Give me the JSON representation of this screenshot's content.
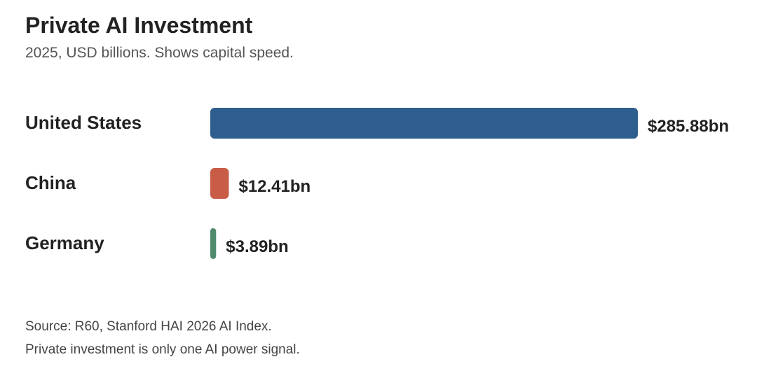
{
  "chart_data": {
    "type": "bar",
    "orientation": "horizontal",
    "title": "Private AI Investment",
    "subtitle": "2025, USD billions. Shows capital speed.",
    "categories": [
      "United States",
      "China",
      "Germany"
    ],
    "values": [
      285.88,
      12.41,
      3.89
    ],
    "value_labels": [
      "$285.88bn",
      "$12.41bn",
      "$3.89bn"
    ],
    "colors": [
      "#2e5e8e",
      "#c95c47",
      "#4f8a6b"
    ],
    "xlim": [
      0,
      285.88
    ],
    "grid": false,
    "legend": "none"
  },
  "footer": {
    "source": "Source: R60, Stanford HAI 2026 AI Index.",
    "note": "Private investment is only one AI power signal."
  }
}
